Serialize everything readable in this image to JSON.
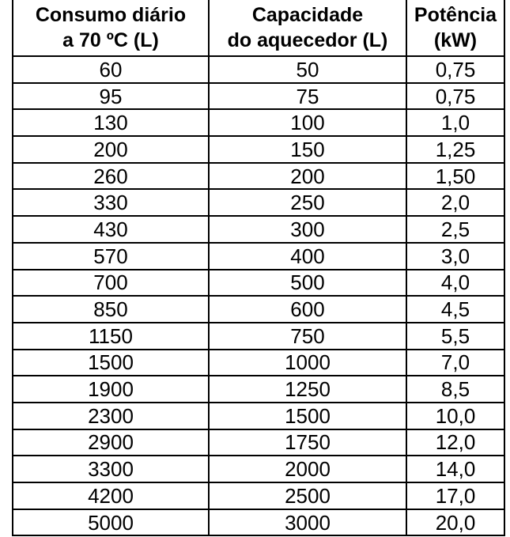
{
  "table": {
    "headers": [
      {
        "line1": "Consumo diário",
        "line2": "a 70 ºC (L)"
      },
      {
        "line1": "Capacidade",
        "line2": "do aquecedor (L)"
      },
      {
        "line1": "Potência",
        "line2": "(kW)"
      }
    ],
    "rows": [
      [
        "60",
        "50",
        "0,75"
      ],
      [
        "95",
        "75",
        "0,75"
      ],
      [
        "130",
        "100",
        "1,0"
      ],
      [
        "200",
        "150",
        "1,25"
      ],
      [
        "260",
        "200",
        "1,50"
      ],
      [
        "330",
        "250",
        "2,0"
      ],
      [
        "430",
        "300",
        "2,5"
      ],
      [
        "570",
        "400",
        "3,0"
      ],
      [
        "700",
        "500",
        "4,0"
      ],
      [
        "850",
        "600",
        "4,5"
      ],
      [
        "1150",
        "750",
        "5,5"
      ],
      [
        "1500",
        "1000",
        "7,0"
      ],
      [
        "1900",
        "1250",
        "8,5"
      ],
      [
        "2300",
        "1500",
        "10,0"
      ],
      [
        "2900",
        "1750",
        "12,0"
      ],
      [
        "3300",
        "2000",
        "14,0"
      ],
      [
        "4200",
        "2500",
        "17,0"
      ],
      [
        "5000",
        "3000",
        "20,0"
      ]
    ]
  }
}
